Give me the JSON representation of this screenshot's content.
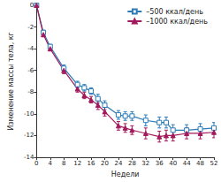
{
  "chart_data": {
    "type": "line",
    "x_label": "Недели",
    "y_label": "Изменение массы тела, кг",
    "xlim": [
      0,
      52
    ],
    "xticks": [
      0,
      4,
      8,
      12,
      16,
      20,
      24,
      28,
      32,
      36,
      40,
      44,
      48,
      52
    ],
    "ylim": [
      -14,
      0
    ],
    "yticks": [
      -14,
      -12,
      -10,
      -8,
      -6,
      -4,
      -2,
      0
    ],
    "grid": false,
    "legend": "upper right",
    "x": [
      0,
      2,
      4,
      8,
      12,
      14,
      16,
      18,
      20,
      24,
      26,
      28,
      32,
      36,
      38,
      40,
      44,
      48,
      52
    ],
    "series": [
      {
        "name": "–500 ккал/день",
        "color": "#2b7bb9",
        "marker": "square",
        "values": [
          0,
          -2.5,
          -3.8,
          -5.8,
          -7.3,
          -7.6,
          -7.9,
          -8.6,
          -9.2,
          -10.1,
          -10.2,
          -10.2,
          -10.6,
          -10.8,
          -10.8,
          -11.5,
          -11.5,
          -11.4,
          -11.3
        ],
        "errors": [
          0,
          0.2,
          0.2,
          0.3,
          0.3,
          0.3,
          0.3,
          0.4,
          0.4,
          0.4,
          0.4,
          0.4,
          0.5,
          0.5,
          0.5,
          0.5,
          0.5,
          0.5,
          0.5
        ]
      },
      {
        "name": "–1000 ккал/день",
        "color": "#a3195b",
        "marker": "triangle",
        "values": [
          0,
          -2.7,
          -4.0,
          -6.0,
          -7.7,
          -8.3,
          -8.7,
          -9.2,
          -9.8,
          -11.1,
          -11.3,
          -11.5,
          -11.8,
          -12.1,
          -12.0,
          -12.0,
          -11.8,
          -11.8,
          -11.7
        ],
        "errors": [
          0,
          0.2,
          0.2,
          0.3,
          0.3,
          0.3,
          0.3,
          0.4,
          0.4,
          0.4,
          0.4,
          0.4,
          0.5,
          0.5,
          0.5,
          0.5,
          0.5,
          0.5,
          0.5
        ]
      }
    ]
  }
}
